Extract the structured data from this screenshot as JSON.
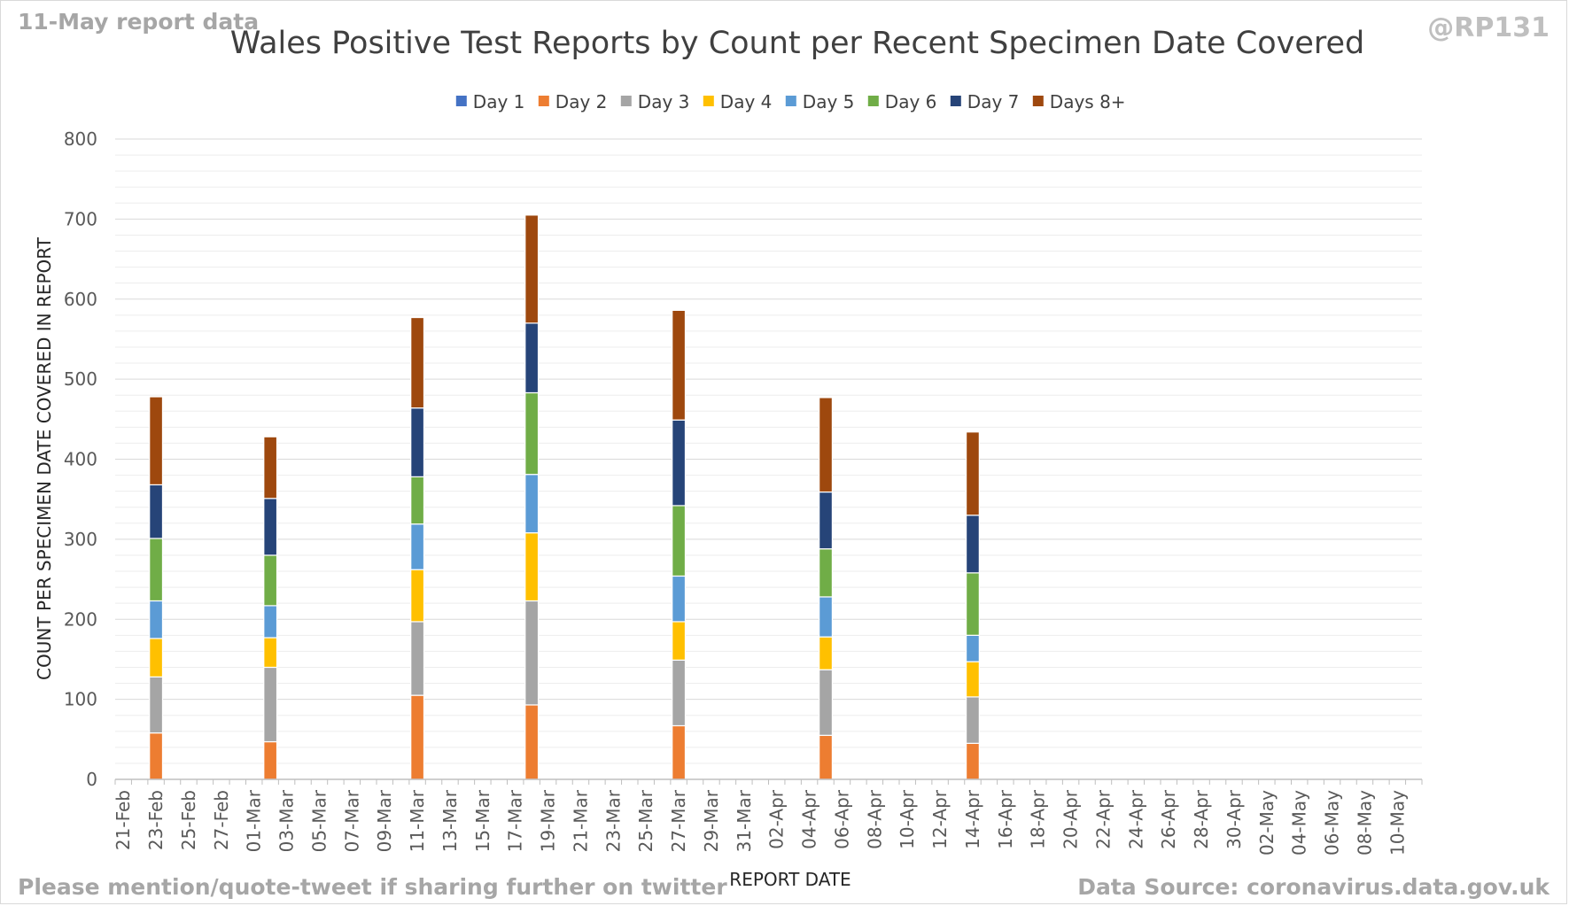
{
  "header": {
    "report_note": "11-May report data",
    "handle": "@RP131"
  },
  "footer": {
    "share_note": "Please mention/quote-tweet if sharing further on twitter",
    "source": "Data Source: coronavirus.data.gov.uk"
  },
  "chart_data": {
    "type": "bar",
    "stacked": true,
    "title": "Wales Positive Test Reports by Count per Recent Specimen Date Covered",
    "xlabel": "REPORT DATE",
    "ylabel": "COUNT PER SPECIMEN DATE COVERED IN REPORT",
    "ylim": [
      0,
      800
    ],
    "yticks": [
      0,
      100,
      200,
      300,
      400,
      500,
      600,
      700,
      800
    ],
    "grid": "horizontal major and minor",
    "legend_position": "top",
    "categories": [
      "21-Feb",
      "22-Feb",
      "23-Feb",
      "24-Feb",
      "25-Feb",
      "26-Feb",
      "27-Feb",
      "28-Feb",
      "01-Mar",
      "02-Mar",
      "03-Mar",
      "04-Mar",
      "05-Mar",
      "06-Mar",
      "07-Mar",
      "08-Mar",
      "09-Mar",
      "10-Mar",
      "11-Mar",
      "12-Mar",
      "13-Mar",
      "14-Mar",
      "15-Mar",
      "16-Mar",
      "17-Mar",
      "18-Mar",
      "19-Mar",
      "20-Mar",
      "21-Mar",
      "22-Mar",
      "23-Mar",
      "24-Mar",
      "25-Mar",
      "26-Mar",
      "27-Mar",
      "28-Mar",
      "29-Mar",
      "30-Mar",
      "31-Mar",
      "01-Apr",
      "02-Apr",
      "03-Apr",
      "04-Apr",
      "05-Apr",
      "06-Apr",
      "07-Apr",
      "08-Apr",
      "09-Apr",
      "10-Apr",
      "11-Apr",
      "12-Apr",
      "13-Apr",
      "14-Apr",
      "15-Apr",
      "16-Apr",
      "17-Apr",
      "18-Apr",
      "19-Apr",
      "20-Apr",
      "21-Apr",
      "22-Apr",
      "23-Apr",
      "24-Apr",
      "25-Apr",
      "26-Apr",
      "27-Apr",
      "28-Apr",
      "29-Apr",
      "30-Apr",
      "01-May",
      "02-May",
      "03-May",
      "04-May",
      "05-May",
      "06-May",
      "07-May",
      "08-May",
      "09-May",
      "10-May",
      "11-May"
    ],
    "tick_labels": [
      "21-Feb",
      "23-Feb",
      "25-Feb",
      "27-Feb",
      "01-Mar",
      "03-Mar",
      "05-Mar",
      "07-Mar",
      "09-Mar",
      "11-Mar",
      "13-Mar",
      "15-Mar",
      "17-Mar",
      "19-Mar",
      "21-Mar",
      "23-Mar",
      "25-Mar",
      "27-Mar",
      "29-Mar",
      "31-Mar",
      "02-Apr",
      "04-Apr",
      "06-Apr",
      "08-Apr",
      "10-Apr",
      "12-Apr",
      "14-Apr",
      "16-Apr",
      "18-Apr",
      "20-Apr",
      "22-Apr",
      "24-Apr",
      "26-Apr",
      "28-Apr",
      "30-Apr",
      "02-May",
      "04-May",
      "06-May",
      "08-May",
      "10-May"
    ],
    "series": [
      {
        "name": "Day 1",
        "color": "#4472c4",
        "values": [
          0,
          0,
          0,
          0,
          0,
          0,
          0,
          0,
          0,
          0,
          0,
          0,
          0,
          0,
          0,
          0,
          0,
          0,
          0,
          0,
          0,
          0,
          0,
          0,
          0,
          0,
          0,
          0,
          0,
          0,
          0,
          0,
          0,
          0,
          0,
          0,
          0,
          0,
          0,
          0,
          0,
          0,
          0,
          0,
          0,
          0,
          0,
          0,
          0,
          0,
          0,
          0,
          0,
          0,
          0,
          0,
          0,
          0,
          0,
          0,
          0,
          0,
          0,
          0,
          0,
          0,
          0,
          0,
          0,
          0,
          0,
          0,
          0,
          0,
          0,
          0,
          0,
          0,
          0,
          0
        ]
      },
      {
        "name": "Day 2",
        "color": "#ed7d31",
        "values": [
          0,
          0,
          58,
          0,
          0,
          0,
          0,
          0,
          0,
          47,
          0,
          0,
          0,
          0,
          0,
          0,
          0,
          0,
          105,
          0,
          0,
          0,
          0,
          0,
          0,
          93,
          0,
          0,
          0,
          0,
          0,
          0,
          0,
          0,
          67,
          0,
          0,
          0,
          0,
          0,
          0,
          0,
          0,
          55,
          0,
          0,
          0,
          0,
          0,
          0,
          0,
          0,
          45,
          0,
          0,
          0,
          0,
          0,
          0,
          0,
          0,
          0,
          0,
          0,
          0,
          0,
          0,
          0,
          0,
          0,
          0,
          0,
          0,
          0,
          0,
          0,
          0,
          0,
          0,
          0
        ]
      },
      {
        "name": "Day 3",
        "color": "#a5a5a5",
        "values": [
          0,
          0,
          70,
          0,
          0,
          0,
          0,
          0,
          0,
          93,
          0,
          0,
          0,
          0,
          0,
          0,
          0,
          0,
          92,
          0,
          0,
          0,
          0,
          0,
          0,
          130,
          0,
          0,
          0,
          0,
          0,
          0,
          0,
          0,
          82,
          0,
          0,
          0,
          0,
          0,
          0,
          0,
          0,
          82,
          0,
          0,
          0,
          0,
          0,
          0,
          0,
          0,
          58,
          0,
          0,
          0,
          0,
          0,
          0,
          0,
          0,
          0,
          0,
          0,
          0,
          0,
          0,
          0,
          0,
          0,
          0,
          0,
          0,
          0,
          0,
          0,
          0,
          0,
          0,
          0
        ]
      },
      {
        "name": "Day 4",
        "color": "#ffc000",
        "values": [
          0,
          0,
          48,
          0,
          0,
          0,
          0,
          0,
          0,
          37,
          0,
          0,
          0,
          0,
          0,
          0,
          0,
          0,
          65,
          0,
          0,
          0,
          0,
          0,
          0,
          85,
          0,
          0,
          0,
          0,
          0,
          0,
          0,
          0,
          48,
          0,
          0,
          0,
          0,
          0,
          0,
          0,
          0,
          41,
          0,
          0,
          0,
          0,
          0,
          0,
          0,
          0,
          44,
          0,
          0,
          0,
          0,
          0,
          0,
          0,
          0,
          0,
          0,
          0,
          0,
          0,
          0,
          0,
          0,
          0,
          0,
          0,
          0,
          0,
          0,
          0,
          0,
          0,
          0,
          0
        ]
      },
      {
        "name": "Day 5",
        "color": "#5b9bd5",
        "values": [
          0,
          0,
          47,
          0,
          0,
          0,
          0,
          0,
          0,
          40,
          0,
          0,
          0,
          0,
          0,
          0,
          0,
          0,
          57,
          0,
          0,
          0,
          0,
          0,
          0,
          73,
          0,
          0,
          0,
          0,
          0,
          0,
          0,
          0,
          57,
          0,
          0,
          0,
          0,
          0,
          0,
          0,
          0,
          50,
          0,
          0,
          0,
          0,
          0,
          0,
          0,
          0,
          33,
          0,
          0,
          0,
          0,
          0,
          0,
          0,
          0,
          0,
          0,
          0,
          0,
          0,
          0,
          0,
          0,
          0,
          0,
          0,
          0,
          0,
          0,
          0,
          0,
          0,
          0,
          0
        ]
      },
      {
        "name": "Day 6",
        "color": "#70ad47",
        "values": [
          0,
          0,
          78,
          0,
          0,
          0,
          0,
          0,
          0,
          63,
          0,
          0,
          0,
          0,
          0,
          0,
          0,
          0,
          59,
          0,
          0,
          0,
          0,
          0,
          0,
          102,
          0,
          0,
          0,
          0,
          0,
          0,
          0,
          0,
          88,
          0,
          0,
          0,
          0,
          0,
          0,
          0,
          0,
          60,
          0,
          0,
          0,
          0,
          0,
          0,
          0,
          0,
          78,
          0,
          0,
          0,
          0,
          0,
          0,
          0,
          0,
          0,
          0,
          0,
          0,
          0,
          0,
          0,
          0,
          0,
          0,
          0,
          0,
          0,
          0,
          0,
          0,
          0,
          0,
          0
        ]
      },
      {
        "name": "Day 7",
        "color": "#264478",
        "values": [
          0,
          0,
          67,
          0,
          0,
          0,
          0,
          0,
          0,
          71,
          0,
          0,
          0,
          0,
          0,
          0,
          0,
          0,
          86,
          0,
          0,
          0,
          0,
          0,
          0,
          87,
          0,
          0,
          0,
          0,
          0,
          0,
          0,
          0,
          107,
          0,
          0,
          0,
          0,
          0,
          0,
          0,
          0,
          71,
          0,
          0,
          0,
          0,
          0,
          0,
          0,
          0,
          72,
          0,
          0,
          0,
          0,
          0,
          0,
          0,
          0,
          0,
          0,
          0,
          0,
          0,
          0,
          0,
          0,
          0,
          0,
          0,
          0,
          0,
          0,
          0,
          0,
          0,
          0,
          0
        ]
      },
      {
        "name": "Days 8+",
        "color": "#9e480e",
        "values": [
          0,
          0,
          110,
          0,
          0,
          0,
          0,
          0,
          0,
          77,
          0,
          0,
          0,
          0,
          0,
          0,
          0,
          0,
          113,
          0,
          0,
          0,
          0,
          0,
          0,
          135,
          0,
          0,
          0,
          0,
          0,
          0,
          0,
          0,
          137,
          0,
          0,
          0,
          0,
          0,
          0,
          0,
          0,
          118,
          0,
          0,
          0,
          0,
          0,
          0,
          0,
          0,
          104,
          0,
          0,
          0,
          0,
          0,
          0,
          0,
          0,
          0,
          0,
          0,
          0,
          0,
          0,
          0,
          0,
          0,
          0,
          0,
          0,
          0,
          0,
          0,
          0,
          0,
          0,
          0
        ]
      }
    ]
  }
}
